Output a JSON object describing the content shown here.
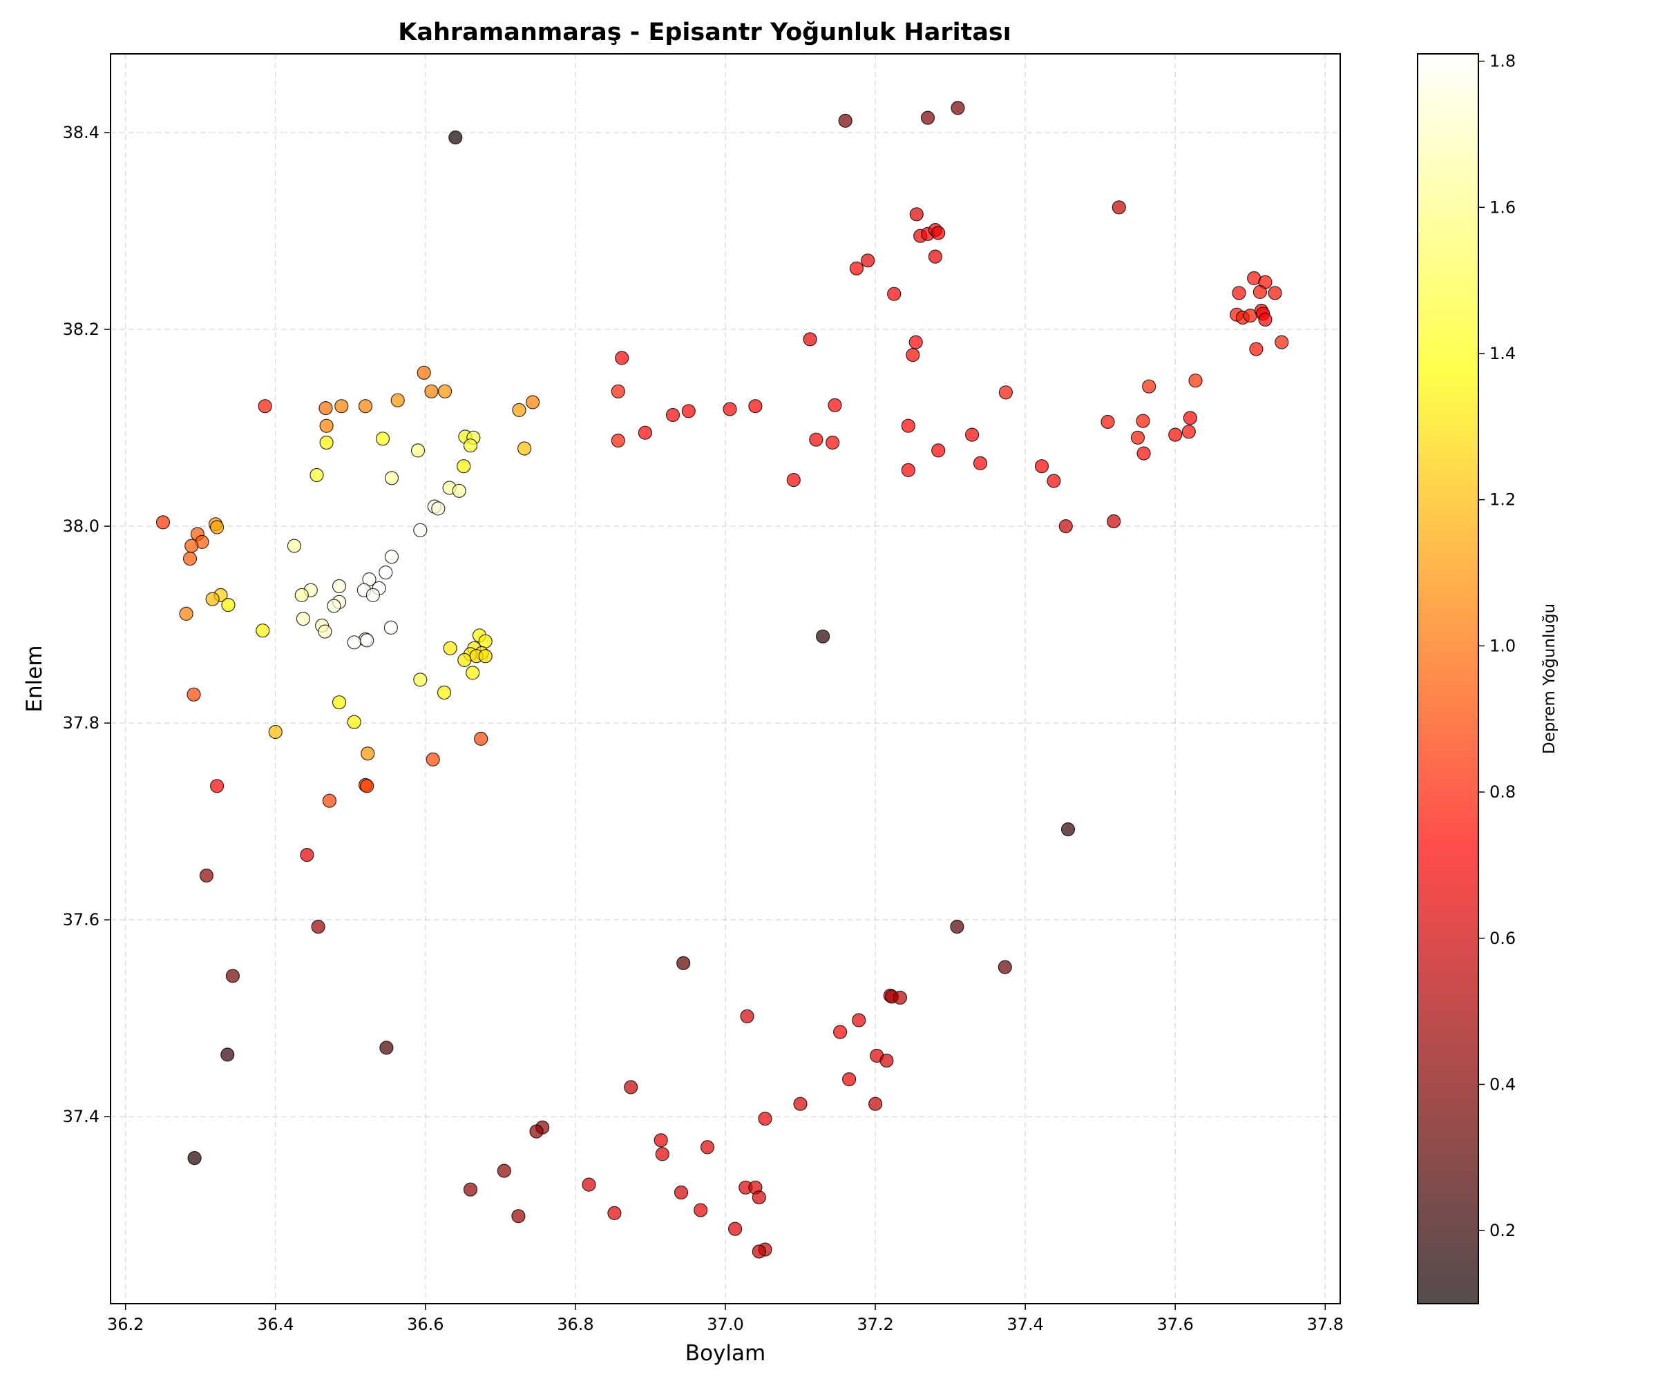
{
  "chart_data": {
    "type": "scatter",
    "title": "Kahramanmaraş - Episantr Yoğunluk Haritası",
    "xlabel": "Boylam",
    "ylabel": "Enlem",
    "xlim": [
      36.18,
      37.82
    ],
    "ylim": [
      37.21,
      38.48
    ],
    "xticks": [
      "36.2",
      "36.4",
      "36.6",
      "36.8",
      "37.0",
      "37.2",
      "37.4",
      "37.6",
      "37.8"
    ],
    "yticks": [
      "37.4",
      "37.6",
      "37.8",
      "38.0",
      "38.2",
      "38.4"
    ],
    "grid": true,
    "colorbar": {
      "label": "Deprem Yoğunluğu",
      "min": 0.1,
      "max": 1.81,
      "ticks": [
        "0.2",
        "0.4",
        "0.6",
        "0.8",
        "1.0",
        "1.2",
        "1.4",
        "1.6",
        "1.8"
      ],
      "colormap": "hot",
      "alpha": 0.7
    },
    "points": [
      [
        36.64,
        38.395,
        0.12
      ],
      [
        37.16,
        38.412,
        0.35
      ],
      [
        37.27,
        38.415,
        0.38
      ],
      [
        37.31,
        38.425,
        0.36
      ],
      [
        37.525,
        38.324,
        0.55
      ],
      [
        37.255,
        38.317,
        0.62
      ],
      [
        37.26,
        38.295,
        0.66
      ],
      [
        37.27,
        38.297,
        0.68
      ],
      [
        37.28,
        38.301,
        0.67
      ],
      [
        37.284,
        38.298,
        0.66
      ],
      [
        37.28,
        38.274,
        0.64
      ],
      [
        37.19,
        38.27,
        0.63
      ],
      [
        37.175,
        38.262,
        0.7
      ],
      [
        37.225,
        38.236,
        0.7
      ],
      [
        37.685,
        38.237,
        0.75
      ],
      [
        37.705,
        38.252,
        0.76
      ],
      [
        37.72,
        38.248,
        0.76
      ],
      [
        37.733,
        38.237,
        0.76
      ],
      [
        37.713,
        38.238,
        0.78
      ],
      [
        37.682,
        38.215,
        0.78
      ],
      [
        37.69,
        38.212,
        0.78
      ],
      [
        37.7,
        38.214,
        0.78
      ],
      [
        37.715,
        38.219,
        0.7
      ],
      [
        37.717,
        38.216,
        0.7
      ],
      [
        37.72,
        38.21,
        0.72
      ],
      [
        37.708,
        38.18,
        0.76
      ],
      [
        37.742,
        38.187,
        0.8
      ],
      [
        37.113,
        38.19,
        0.65
      ],
      [
        37.254,
        38.187,
        0.72
      ],
      [
        37.25,
        38.174,
        0.74
      ],
      [
        36.862,
        38.171,
        0.72
      ],
      [
        37.565,
        38.142,
        0.82
      ],
      [
        37.627,
        38.148,
        0.84
      ],
      [
        37.374,
        38.136,
        0.78
      ],
      [
        36.857,
        38.137,
        0.8
      ],
      [
        37.146,
        38.123,
        0.7
      ],
      [
        37.04,
        38.122,
        0.7
      ],
      [
        37.006,
        38.119,
        0.72
      ],
      [
        36.951,
        38.117,
        0.68
      ],
      [
        36.93,
        38.113,
        0.72
      ],
      [
        37.62,
        38.11,
        0.72
      ],
      [
        37.51,
        38.106,
        0.76
      ],
      [
        37.557,
        38.107,
        0.78
      ],
      [
        37.244,
        38.102,
        0.72
      ],
      [
        36.893,
        38.095,
        0.72
      ],
      [
        37.329,
        38.093,
        0.7
      ],
      [
        37.6,
        38.093,
        0.74
      ],
      [
        37.618,
        38.096,
        0.76
      ],
      [
        37.55,
        38.09,
        0.78
      ],
      [
        37.121,
        38.088,
        0.72
      ],
      [
        37.143,
        38.085,
        0.74
      ],
      [
        36.857,
        38.087,
        0.8
      ],
      [
        37.284,
        38.077,
        0.72
      ],
      [
        37.558,
        38.074,
        0.74
      ],
      [
        37.34,
        38.064,
        0.7
      ],
      [
        37.422,
        38.061,
        0.7
      ],
      [
        37.244,
        38.057,
        0.72
      ],
      [
        37.438,
        38.046,
        0.68
      ],
      [
        37.091,
        38.047,
        0.7
      ],
      [
        37.518,
        38.005,
        0.58
      ],
      [
        37.454,
        38.0,
        0.56
      ],
      [
        37.13,
        37.888,
        0.18
      ],
      [
        36.386,
        38.122,
        0.78
      ],
      [
        36.467,
        38.12,
        1.0
      ],
      [
        36.488,
        38.122,
        1.05
      ],
      [
        36.52,
        38.122,
        1.05
      ],
      [
        36.563,
        38.128,
        1.1
      ],
      [
        36.598,
        38.156,
        1.0
      ],
      [
        36.608,
        38.137,
        1.05
      ],
      [
        36.626,
        38.137,
        1.1
      ],
      [
        36.725,
        38.118,
        1.12
      ],
      [
        36.743,
        38.126,
        1.05
      ],
      [
        36.468,
        38.102,
        1.05
      ],
      [
        36.468,
        38.085,
        1.35
      ],
      [
        36.543,
        38.089,
        1.4
      ],
      [
        36.59,
        38.077,
        1.6
      ],
      [
        36.653,
        38.091,
        1.42
      ],
      [
        36.664,
        38.09,
        1.5
      ],
      [
        36.66,
        38.082,
        1.45
      ],
      [
        36.732,
        38.079,
        1.22
      ],
      [
        36.651,
        38.061,
        1.35
      ],
      [
        36.455,
        38.052,
        1.45
      ],
      [
        36.555,
        38.049,
        1.65
      ],
      [
        36.632,
        38.039,
        1.65
      ],
      [
        36.645,
        38.036,
        1.65
      ],
      [
        36.612,
        38.02,
        1.75
      ],
      [
        36.617,
        38.018,
        1.75
      ],
      [
        36.593,
        37.996,
        1.8
      ],
      [
        36.25,
        38.004,
        0.85
      ],
      [
        36.32,
        38.002,
        1.1
      ],
      [
        36.322,
        37.999,
        1.15
      ],
      [
        36.296,
        37.992,
        0.95
      ],
      [
        36.302,
        37.984,
        0.95
      ],
      [
        36.288,
        37.98,
        0.95
      ],
      [
        36.286,
        37.967,
        0.95
      ],
      [
        36.425,
        37.98,
        1.65
      ],
      [
        36.555,
        37.969,
        1.8
      ],
      [
        36.547,
        37.953,
        1.8
      ],
      [
        36.525,
        37.946,
        1.8
      ],
      [
        36.485,
        37.939,
        1.75
      ],
      [
        36.518,
        37.935,
        1.8
      ],
      [
        36.538,
        37.937,
        1.8
      ],
      [
        36.53,
        37.93,
        1.8
      ],
      [
        36.447,
        37.935,
        1.7
      ],
      [
        36.435,
        37.93,
        1.65
      ],
      [
        36.485,
        37.923,
        1.75
      ],
      [
        36.478,
        37.919,
        1.75
      ],
      [
        36.327,
        37.93,
        1.25
      ],
      [
        36.316,
        37.926,
        1.2
      ],
      [
        36.337,
        37.92,
        1.35
      ],
      [
        36.281,
        37.911,
        1.05
      ],
      [
        36.437,
        37.906,
        1.7
      ],
      [
        36.462,
        37.899,
        1.7
      ],
      [
        36.466,
        37.893,
        1.7
      ],
      [
        36.383,
        37.894,
        1.35
      ],
      [
        36.554,
        37.897,
        1.8
      ],
      [
        36.52,
        37.885,
        1.8
      ],
      [
        36.522,
        37.884,
        1.8
      ],
      [
        36.505,
        37.882,
        1.8
      ],
      [
        36.672,
        37.889,
        1.35
      ],
      [
        36.68,
        37.883,
        1.35
      ],
      [
        36.633,
        37.876,
        1.32
      ],
      [
        36.665,
        37.876,
        1.32
      ],
      [
        36.675,
        37.871,
        1.32
      ],
      [
        36.66,
        37.87,
        1.32
      ],
      [
        36.668,
        37.868,
        1.3
      ],
      [
        36.68,
        37.868,
        1.3
      ],
      [
        36.652,
        37.864,
        1.32
      ],
      [
        36.663,
        37.851,
        1.35
      ],
      [
        36.593,
        37.844,
        1.5
      ],
      [
        36.625,
        37.831,
        1.35
      ],
      [
        36.291,
        37.829,
        0.9
      ],
      [
        36.485,
        37.821,
        1.35
      ],
      [
        36.505,
        37.801,
        1.35
      ],
      [
        36.4,
        37.791,
        1.2
      ],
      [
        36.674,
        37.784,
        0.9
      ],
      [
        36.523,
        37.769,
        1.1
      ],
      [
        36.61,
        37.763,
        0.9
      ],
      [
        36.322,
        37.736,
        0.72
      ],
      [
        36.52,
        37.737,
        0.88
      ],
      [
        36.522,
        37.736,
        0.88
      ],
      [
        36.472,
        37.721,
        0.88
      ],
      [
        36.442,
        37.666,
        0.62
      ],
      [
        36.308,
        37.645,
        0.42
      ],
      [
        36.457,
        37.593,
        0.45
      ],
      [
        36.343,
        37.543,
        0.35
      ],
      [
        36.548,
        37.47,
        0.25
      ],
      [
        36.336,
        37.463,
        0.2
      ],
      [
        36.292,
        37.358,
        0.15
      ],
      [
        37.457,
        37.692,
        0.2
      ],
      [
        37.309,
        37.593,
        0.28
      ],
      [
        37.373,
        37.552,
        0.32
      ],
      [
        36.944,
        37.556,
        0.3
      ],
      [
        37.22,
        37.523,
        0.55
      ],
      [
        37.222,
        37.522,
        0.5
      ],
      [
        37.233,
        37.521,
        0.52
      ],
      [
        37.029,
        37.502,
        0.6
      ],
      [
        37.178,
        37.498,
        0.65
      ],
      [
        37.153,
        37.486,
        0.68
      ],
      [
        37.202,
        37.462,
        0.62
      ],
      [
        37.215,
        37.457,
        0.6
      ],
      [
        37.165,
        37.438,
        0.65
      ],
      [
        36.874,
        37.43,
        0.55
      ],
      [
        37.1,
        37.413,
        0.6
      ],
      [
        37.2,
        37.413,
        0.55
      ],
      [
        37.053,
        37.398,
        0.64
      ],
      [
        36.756,
        37.389,
        0.42
      ],
      [
        36.748,
        37.385,
        0.42
      ],
      [
        36.914,
        37.376,
        0.64
      ],
      [
        36.976,
        37.369,
        0.62
      ],
      [
        36.916,
        37.362,
        0.64
      ],
      [
        36.705,
        37.345,
        0.42
      ],
      [
        36.818,
        37.331,
        0.6
      ],
      [
        37.027,
        37.328,
        0.62
      ],
      [
        37.04,
        37.328,
        0.6
      ],
      [
        36.941,
        37.323,
        0.6
      ],
      [
        36.66,
        37.326,
        0.42
      ],
      [
        37.045,
        37.318,
        0.6
      ],
      [
        36.967,
        37.305,
        0.64
      ],
      [
        36.852,
        37.302,
        0.64
      ],
      [
        36.724,
        37.299,
        0.45
      ],
      [
        37.013,
        37.286,
        0.62
      ],
      [
        37.053,
        37.265,
        0.56
      ],
      [
        37.045,
        37.263,
        0.55
      ]
    ]
  }
}
